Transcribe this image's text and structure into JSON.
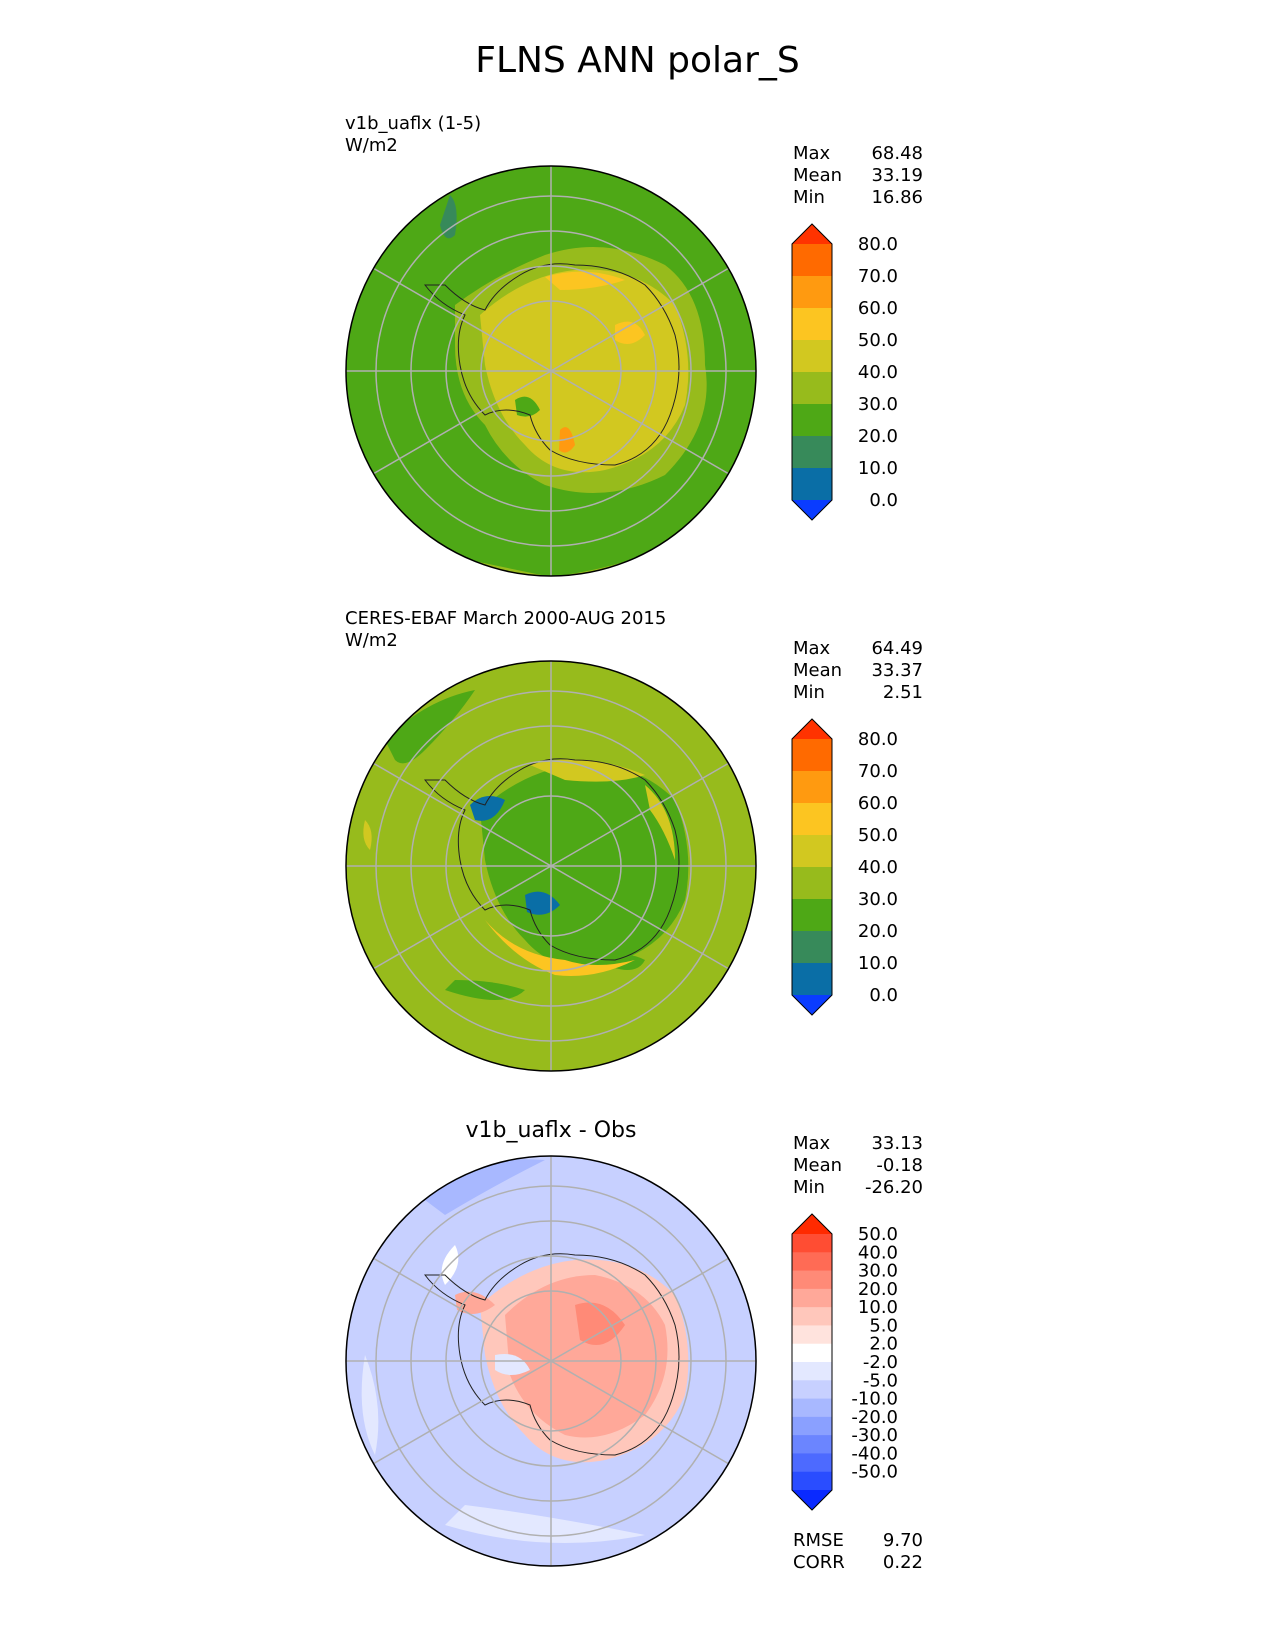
{
  "title": "FLNS ANN polar_S",
  "panels": [
    {
      "id": "model",
      "title_line1": "v1b_uaflx (1-5)",
      "title_line2": "W/m2",
      "stats": [
        {
          "label": "Max",
          "value": "68.48"
        },
        {
          "label": "Mean",
          "value": "33.19"
        },
        {
          "label": "Min",
          "value": "16.86"
        }
      ],
      "colorbar": {
        "labels": [
          "80.0",
          "70.0",
          "60.0",
          "50.0",
          "40.0",
          "30.0",
          "20.0",
          "10.0",
          "0.0"
        ],
        "colors": [
          "#ff3300",
          "#ff6a00",
          "#ff9a10",
          "#fcc521",
          "#d2c820",
          "#97bb1c",
          "#4ea816",
          "#378a5a",
          "#0a6ea6",
          "#0a3cff"
        ]
      },
      "background": "#4ea816"
    },
    {
      "id": "obs",
      "title_line1": "CERES-EBAF March 2000-AUG 2015",
      "title_line2": "W/m2",
      "stats": [
        {
          "label": "Max",
          "value": "64.49"
        },
        {
          "label": "Mean",
          "value": "33.37"
        },
        {
          "label": "Min",
          "value": "2.51"
        }
      ],
      "colorbar": {
        "labels": [
          "80.0",
          "70.0",
          "60.0",
          "50.0",
          "40.0",
          "30.0",
          "20.0",
          "10.0",
          "0.0"
        ],
        "colors": [
          "#ff3300",
          "#ff6a00",
          "#ff9a10",
          "#fcc521",
          "#d2c820",
          "#97bb1c",
          "#4ea816",
          "#378a5a",
          "#0a6ea6",
          "#0a3cff"
        ]
      },
      "background": "#97bb1c"
    },
    {
      "id": "diff",
      "title_line1": "v1b_uaflx - Obs",
      "stats": [
        {
          "label": "Max",
          "value": "33.13"
        },
        {
          "label": "Mean",
          "value": "-0.18"
        },
        {
          "label": "Min",
          "value": "-26.20"
        }
      ],
      "colorbar": {
        "labels": [
          "50.0",
          "40.0",
          "30.0",
          "20.0",
          "10.0",
          "5.0",
          "2.0",
          "-2.0",
          "-5.0",
          "-10.0",
          "-20.0",
          "-30.0",
          "-40.0",
          "-50.0"
        ],
        "colors": [
          "#ff2a00",
          "#ff4d33",
          "#ff6b55",
          "#ff8a77",
          "#ffa899",
          "#ffc7bb",
          "#ffe3dd",
          "#ffffff",
          "#e3e8ff",
          "#c7d0ff",
          "#a8b8ff",
          "#8aa0ff",
          "#6b85ff",
          "#4d6aff",
          "#2a4dff",
          "#0a2aff"
        ]
      },
      "rmse_label": "RMSE",
      "rmse_value": "9.70",
      "corr_label": "CORR",
      "corr_value": "0.22",
      "background": "#c7d0ff"
    }
  ]
}
